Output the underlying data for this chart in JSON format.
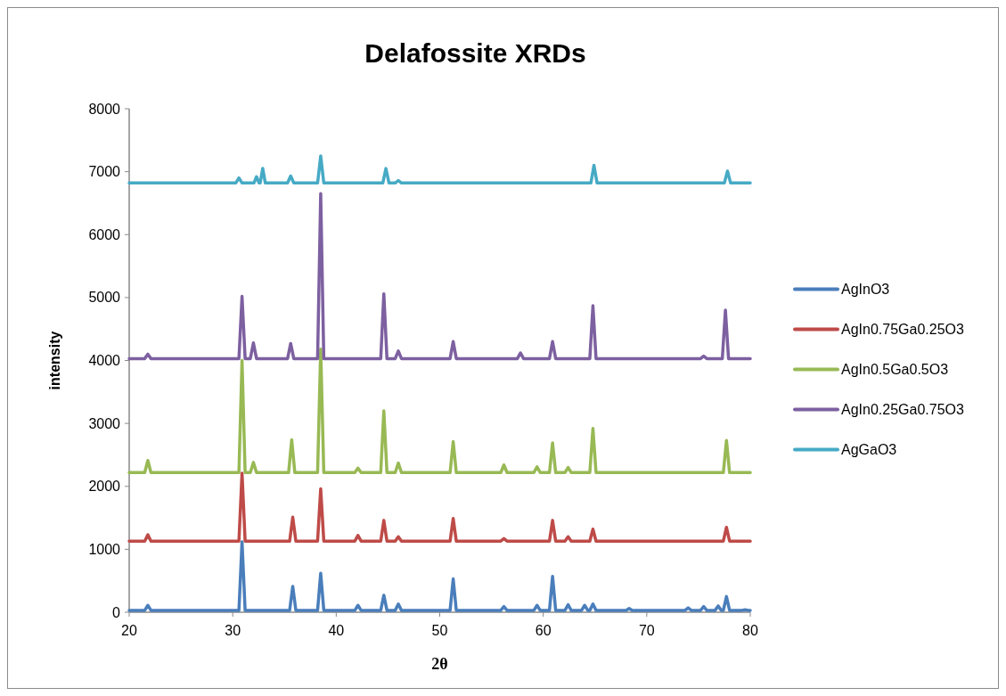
{
  "chart_data": {
    "type": "line",
    "title": "Delafossite XRDs",
    "xlabel": "2θ",
    "ylabel": "intensity",
    "xlim": [
      20,
      80
    ],
    "ylim": [
      0,
      8000
    ],
    "xticks": [
      20,
      30,
      40,
      50,
      60,
      70,
      80
    ],
    "yticks": [
      0,
      1000,
      2000,
      3000,
      4000,
      5000,
      6000,
      7000,
      8000
    ],
    "grid": false,
    "legend": "right",
    "marker": "none",
    "line_style": "solid",
    "series": [
      {
        "name": "AgInO3",
        "color": "#4a7ebb",
        "x": [
          20,
          21.5,
          21.8,
          22.1,
          30.6,
          30.9,
          31.2,
          35.5,
          35.8,
          36.1,
          38.2,
          38.5,
          38.8,
          41.8,
          42.1,
          42.4,
          44.3,
          44.6,
          44.9,
          45.7,
          46.0,
          46.3,
          51.0,
          51.3,
          51.6,
          55.9,
          56.2,
          56.5,
          59.1,
          59.4,
          59.7,
          60.6,
          60.9,
          61.2,
          62.1,
          62.4,
          62.7,
          63.7,
          64.0,
          64.3,
          64.5,
          64.8,
          65.1,
          68.0,
          68.3,
          68.6,
          73.7,
          74.0,
          74.3,
          75.2,
          75.5,
          75.8,
          76.6,
          76.9,
          77.2,
          77.4,
          77.7,
          78.0,
          79.2,
          79.5,
          79.8,
          80
        ],
        "values": [
          30,
          30,
          110,
          30,
          30,
          1120,
          30,
          30,
          410,
          30,
          30,
          620,
          30,
          30,
          110,
          30,
          30,
          270,
          30,
          30,
          130,
          30,
          30,
          530,
          30,
          30,
          90,
          30,
          30,
          110,
          30,
          30,
          570,
          30,
          30,
          120,
          30,
          30,
          110,
          30,
          30,
          130,
          30,
          30,
          60,
          30,
          30,
          70,
          30,
          30,
          90,
          30,
          30,
          100,
          30,
          30,
          250,
          30,
          30,
          40,
          30,
          30
        ]
      },
      {
        "name": "AgIn0.75Ga0.25O3",
        "color": "#be4b48",
        "x": [
          20,
          21.5,
          21.8,
          22.1,
          30.6,
          30.9,
          31.2,
          35.5,
          35.8,
          36.1,
          38.2,
          38.5,
          38.8,
          41.8,
          42.1,
          42.4,
          44.3,
          44.6,
          44.9,
          45.7,
          46.0,
          46.3,
          51.0,
          51.3,
          51.6,
          55.9,
          56.2,
          56.5,
          60.6,
          60.9,
          61.2,
          62.1,
          62.4,
          62.7,
          64.5,
          64.8,
          65.1,
          77.4,
          77.7,
          78.0,
          80
        ],
        "values": [
          1130,
          1130,
          1230,
          1130,
          1130,
          2210,
          1130,
          1130,
          1510,
          1130,
          1130,
          1960,
          1130,
          1130,
          1220,
          1130,
          1130,
          1460,
          1130,
          1130,
          1200,
          1130,
          1130,
          1490,
          1130,
          1130,
          1170,
          1130,
          1130,
          1460,
          1130,
          1130,
          1200,
          1130,
          1130,
          1320,
          1130,
          1130,
          1350,
          1130,
          1130
        ]
      },
      {
        "name": "AgIn0.5Ga0.5O3",
        "color": "#98b954",
        "x": [
          20,
          21.5,
          21.8,
          22.1,
          30.6,
          30.9,
          31.2,
          31.7,
          32.0,
          32.3,
          35.4,
          35.7,
          36.0,
          38.2,
          38.5,
          38.8,
          41.8,
          42.1,
          42.4,
          44.3,
          44.6,
          44.9,
          45.7,
          46.0,
          46.3,
          51.0,
          51.3,
          51.6,
          55.9,
          56.2,
          56.5,
          59.1,
          59.4,
          59.7,
          60.6,
          60.9,
          61.2,
          62.1,
          62.4,
          62.7,
          64.5,
          64.8,
          65.1,
          77.4,
          77.7,
          78.0,
          80
        ],
        "values": [
          2220,
          2220,
          2410,
          2220,
          2220,
          4000,
          2220,
          2220,
          2380,
          2220,
          2220,
          2740,
          2220,
          2220,
          4180,
          2220,
          2220,
          2290,
          2220,
          2220,
          3200,
          2220,
          2220,
          2370,
          2220,
          2220,
          2710,
          2220,
          2220,
          2340,
          2220,
          2220,
          2310,
          2220,
          2220,
          2690,
          2220,
          2220,
          2300,
          2220,
          2220,
          2920,
          2220,
          2220,
          2730,
          2220,
          2220
        ]
      },
      {
        "name": "AgIn0.25Ga0.75O3",
        "color": "#7d60a0",
        "x": [
          20,
          21.5,
          21.8,
          22.1,
          30.6,
          30.9,
          31.2,
          31.7,
          32.0,
          32.3,
          35.3,
          35.6,
          35.9,
          38.2,
          38.5,
          38.8,
          44.3,
          44.6,
          44.9,
          45.7,
          46.0,
          46.3,
          51.0,
          51.3,
          51.6,
          57.5,
          57.8,
          58.1,
          60.6,
          60.9,
          61.2,
          64.5,
          64.8,
          65.1,
          75.2,
          75.5,
          75.8,
          77.3,
          77.6,
          77.9,
          80
        ],
        "values": [
          4030,
          4030,
          4100,
          4030,
          4030,
          5020,
          4030,
          4030,
          4280,
          4030,
          4030,
          4270,
          4030,
          4030,
          6650,
          4030,
          4030,
          5060,
          4030,
          4030,
          4150,
          4030,
          4030,
          4300,
          4030,
          4030,
          4120,
          4030,
          4030,
          4300,
          4030,
          4030,
          4870,
          4030,
          4030,
          4070,
          4030,
          4030,
          4800,
          4030,
          4030
        ]
      },
      {
        "name": "AgGaO3",
        "color": "#46aac5",
        "x": [
          20,
          30.3,
          30.6,
          30.9,
          32.05,
          32.3,
          32.55,
          32.65,
          32.9,
          33.15,
          35.3,
          35.6,
          35.9,
          38.2,
          38.5,
          38.8,
          44.5,
          44.8,
          45.1,
          45.7,
          46.0,
          46.3,
          64.6,
          64.9,
          65.2,
          77.5,
          77.8,
          78.1,
          80
        ],
        "values": [
          6820,
          6820,
          6900,
          6820,
          6820,
          6920,
          6820,
          6820,
          7050,
          6820,
          6820,
          6930,
          6820,
          6820,
          7250,
          6820,
          6820,
          7050,
          6820,
          6820,
          6860,
          6820,
          6820,
          7100,
          6820,
          6820,
          7010,
          6820,
          6820
        ]
      }
    ]
  }
}
